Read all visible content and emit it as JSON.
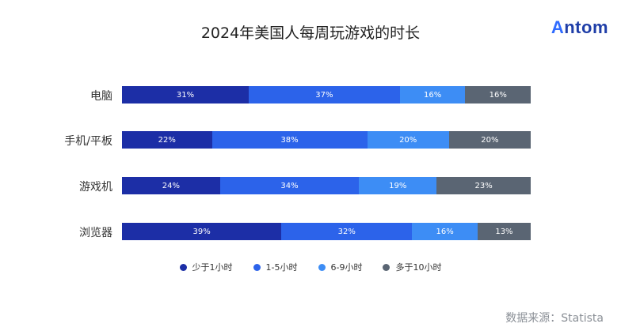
{
  "title": "2024年美国人每周玩游戏的时长",
  "logo": {
    "prefix": "A",
    "rest": "ntom",
    "color": "#1f3ea8",
    "accent": "#2f6bff"
  },
  "source": "数据来源：Statista",
  "chart_data": {
    "type": "bar",
    "orientation": "horizontal",
    "stacked": true,
    "percent": true,
    "categories": [
      "电脑",
      "手机/平板",
      "游戏机",
      "浏览器"
    ],
    "series": [
      {
        "name": "少于1小时",
        "color": "#1c2ea6",
        "values": [
          31,
          22,
          24,
          39
        ]
      },
      {
        "name": "1-5小时",
        "color": "#2c63ea",
        "values": [
          37,
          38,
          34,
          32
        ]
      },
      {
        "name": "6-9小时",
        "color": "#3d8df5",
        "values": [
          16,
          20,
          19,
          16
        ]
      },
      {
        "name": "多于10小时",
        "color": "#5a6573",
        "values": [
          16,
          20,
          23,
          13
        ]
      }
    ],
    "value_suffix": "%",
    "legend_position": "bottom",
    "grid": false
  }
}
